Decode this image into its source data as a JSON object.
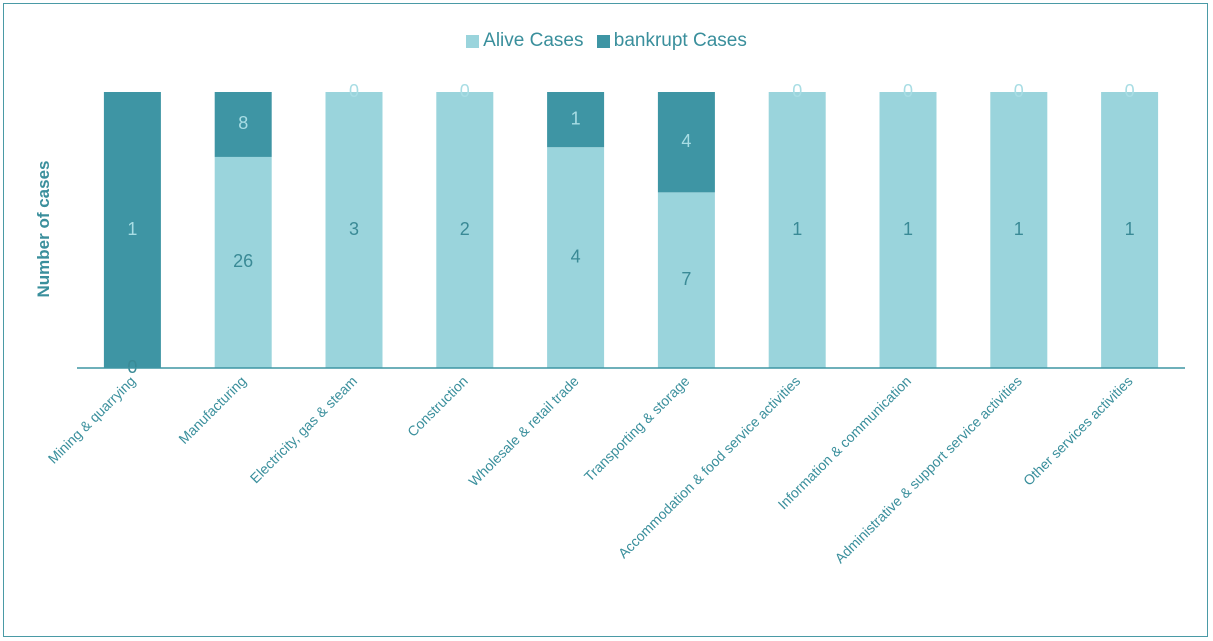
{
  "chart_data": {
    "type": "bar",
    "stacked": true,
    "normalized_to_100_percent": true,
    "categories": [
      "Mining & quarrying",
      "Manufacturing",
      "Electricity, gas & steam",
      "Construction",
      "Wholesale & retail trade",
      "Transporting & storage",
      "Accommodation & food service activities",
      "Information & communication",
      "Administrative & support service activities",
      "Other services activities"
    ],
    "series": [
      {
        "name": "Alive Cases",
        "color": "#9ad4dc",
        "values": [
          0,
          26,
          3,
          2,
          4,
          7,
          1,
          1,
          1,
          1
        ]
      },
      {
        "name": "bankrupt Cases",
        "color": "#3e95a4",
        "values": [
          1,
          8,
          0,
          0,
          1,
          4,
          0,
          0,
          0,
          0
        ]
      }
    ],
    "ylabel": "Number of cases",
    "xlabel": "",
    "legend_position": "top",
    "grid": false
  }
}
